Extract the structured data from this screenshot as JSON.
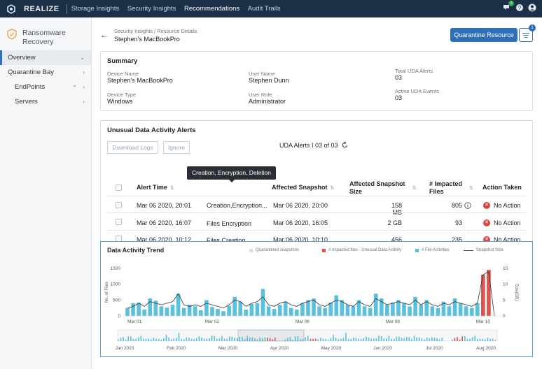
{
  "app": {
    "brand": "REALIZE",
    "nav": [
      "Storage Insights",
      "Security Insights",
      "Recommendations",
      "Audit Trails"
    ],
    "active_nav": "Recommendations",
    "notification_count": "3"
  },
  "sidebar": {
    "title_line1": "Ransomware",
    "title_line2": "Recovery",
    "items": [
      {
        "label": "Overview"
      },
      {
        "label": "Quarantine Bay"
      },
      {
        "label": "EndPoints"
      },
      {
        "label": "Servers"
      }
    ]
  },
  "header": {
    "breadcrumb": "Security Insights / Resource Details",
    "title": "Stephen's MacBookPro",
    "quarantine_button": "Quarantine Resource",
    "menu_badge": "1"
  },
  "summary": {
    "title": "Summary",
    "device_name_label": "Device Name",
    "device_name": "Stephen's MacBookPro",
    "device_type_label": "Device Type",
    "device_type": "Windows",
    "user_name_label": "User Name",
    "user_name": "Stephen Dunn",
    "user_role_label": "User Role",
    "user_role": "Administrator",
    "total_uda_label": "Total UDA Alerts",
    "total_uda": "03",
    "active_uda_label": "Active UDA Events",
    "active_uda": "03"
  },
  "alerts": {
    "title": "Unusual Data Activity Alerts",
    "download_label": "Download Logs",
    "ignore_label": "Ignore",
    "count_text": "UDA Alerts I 03 of 03",
    "columns": {
      "alert_time": "Alert Time",
      "affected_snapshot": "Affected Snapshot",
      "snapshot_size_1": "Affected Snapshot",
      "snapshot_size_2": "Size",
      "impacted_1": "# Impacted",
      "impacted_2": "Files",
      "action": "Action Taken"
    },
    "tooltip": "Creation, Encryption, Deletion",
    "rows": [
      {
        "time": "Mar 06 2020, 20:01",
        "activity": "Creation,Encryption...",
        "snapshot": "Mar 06 2020, 20:00",
        "size": "158 MB",
        "files": "805",
        "action": "No Action"
      },
      {
        "time": "Mar 06 2020, 16:07",
        "activity": "Files Encryption",
        "snapshot": "Mar 06 2020, 16:05",
        "size": "2 GB",
        "files": "93",
        "action": "No Action"
      },
      {
        "time": "Mar 06 2020, 10:12",
        "activity": "Files Creation",
        "snapshot": "Mar 06 2020, 10:10",
        "size": "456 MB",
        "files": "235",
        "action": "No Action"
      }
    ]
  },
  "trend": {
    "title": "Data Activity Trend",
    "legend": [
      "Quarantined snapshots",
      "# Impacted files - Unusual Data Activity",
      "# File Activities",
      "Snapshot Size"
    ],
    "colors": {
      "file": "#5bc0de",
      "impacted": "#d9534f",
      "line": "#333333",
      "quarantine": "#d7dde3"
    }
  },
  "chart_data": {
    "type": "bar",
    "title": "Data Activity Trend",
    "ylabel": "No. of Files",
    "y2label": "Size(GB)",
    "ylim": [
      0,
      1500
    ],
    "y2lim": [
      0,
      15
    ],
    "y_ticks": [
      "1500",
      "1000",
      "500",
      "0"
    ],
    "y2_ticks": [
      "15",
      "10",
      "5",
      "0"
    ],
    "x_ticks": [
      "Mar 01",
      "Mar 03",
      "Mar 06",
      "Mar 08",
      "Mar 10"
    ],
    "overview_ticks": [
      "Jan 2020",
      "Feb 2020",
      "Mar 2020",
      "Apr 2020",
      "May 2020",
      "Jun 2020",
      "Jul 2020",
      "Aug 2020"
    ],
    "series": [
      {
        "name": "# File Activities",
        "values": [
          250,
          400,
          420,
          200,
          550,
          480,
          300,
          260,
          350,
          700,
          250,
          350,
          300,
          180,
          500,
          280,
          220,
          150,
          320,
          600,
          450,
          200,
          380,
          400,
          850,
          300,
          220,
          350,
          450,
          250,
          200,
          400,
          500,
          550,
          300,
          250,
          420,
          650,
          500,
          350,
          300,
          500,
          300,
          250,
          700,
          550,
          350,
          420,
          500,
          400,
          300,
          600,
          350,
          500,
          300,
          250,
          450,
          300,
          550,
          400,
          300,
          250,
          400,
          0,
          0,
          0
        ]
      },
      {
        "name": "# Impacted files - Unusual Data Activity",
        "values": [
          0,
          0,
          0,
          0,
          0,
          0,
          0,
          0,
          0,
          0,
          0,
          0,
          0,
          0,
          0,
          0,
          0,
          0,
          0,
          0,
          0,
          0,
          0,
          0,
          0,
          0,
          0,
          0,
          0,
          0,
          0,
          0,
          0,
          0,
          0,
          0,
          0,
          0,
          0,
          0,
          0,
          0,
          0,
          0,
          0,
          0,
          0,
          0,
          0,
          0,
          0,
          0,
          0,
          0,
          0,
          0,
          0,
          0,
          0,
          0,
          0,
          0,
          0,
          1300,
          1450,
          0
        ]
      },
      {
        "name": "Snapshot Size",
        "values": [
          2.5,
          3,
          4,
          3,
          4.5,
          4,
          3.5,
          4,
          4.5,
          7,
          3.5,
          3,
          3.5,
          3,
          4,
          3.5,
          3,
          2.5,
          3.5,
          5,
          4.5,
          3,
          4,
          4.5,
          6,
          3.5,
          3,
          4,
          4.5,
          3.5,
          3,
          4,
          4.5,
          5,
          3.5,
          3,
          4,
          5,
          4.5,
          3.5,
          3,
          4.5,
          3.5,
          3,
          5.5,
          4.5,
          3.5,
          4,
          4.5,
          4,
          3.5,
          5,
          3.5,
          4.5,
          3.5,
          3,
          4,
          3.5,
          4.5,
          4,
          3.5,
          3,
          4,
          13,
          14,
          0
        ]
      }
    ]
  }
}
